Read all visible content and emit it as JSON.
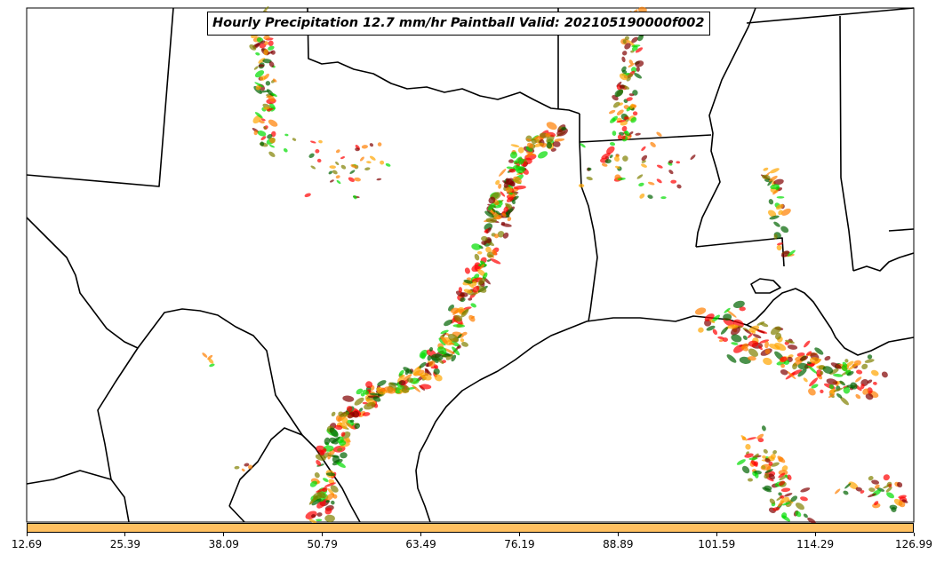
{
  "title": "Hourly Precipitation 12.7 mm/hr Paintball Valid: 202105190000f002",
  "colors": {
    "colorbar_fill": "#ffc060",
    "border": "#000000",
    "paintball_palette": [
      "#ff0000",
      "#ff7f00",
      "#ffa500",
      "#00dd00",
      "#006400",
      "#808000",
      "#800000"
    ]
  },
  "colorbar": {
    "ticks": [
      "12.69",
      "25.39",
      "38.09",
      "50.79",
      "63.49",
      "76.19",
      "88.89",
      "101.59",
      "114.29",
      "126.99"
    ]
  }
}
